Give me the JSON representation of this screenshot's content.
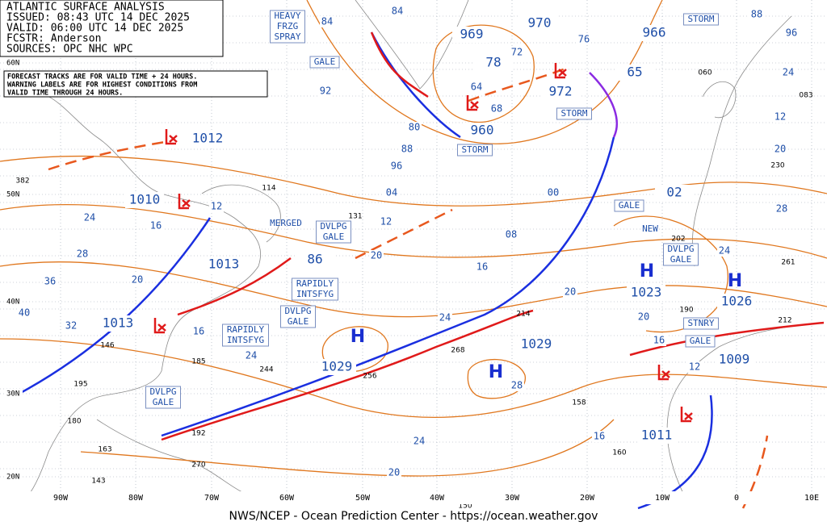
{
  "header": {
    "lines": [
      "ATLANTIC SURFACE ANALYSIS",
      "ISSUED: 08:43 UTC 14 DEC 2025",
      "VALID: 06:00 UTC 14 DEC 2025",
      "FCSTR: Anderson",
      "SOURCES: OPC NHC WPC"
    ]
  },
  "note": {
    "lines": [
      "FORECAST TRACKS ARE FOR VALID TIME + 24 HOURS.",
      "WARNING LABELS ARE FOR HIGHEST CONDITIONS FROM",
      "VALID TIME THROUGH 24 HOURS."
    ]
  },
  "warnings": [
    {
      "lines": [
        "HEAVY",
        "FRZG",
        "SPRAY"
      ]
    },
    {
      "lines": [
        "GALE"
      ]
    },
    {
      "lines": [
        "STORM"
      ]
    },
    {
      "lines": [
        "STORM"
      ]
    },
    {
      "lines": [
        "STORM"
      ]
    },
    {
      "lines": [
        "GALE"
      ]
    },
    {
      "lines": [
        "MERGED"
      ]
    },
    {
      "lines": [
        "DVLPG",
        "GALE"
      ]
    },
    {
      "lines": [
        "NEW"
      ]
    },
    {
      "lines": [
        "DVLPG",
        "GALE"
      ]
    },
    {
      "lines": [
        "RAPIDLY",
        "INTSFYG"
      ]
    },
    {
      "lines": [
        "DVLPG",
        "GALE"
      ]
    },
    {
      "lines": [
        "RAPIDLY",
        "INTSFYG"
      ]
    },
    {
      "lines": [
        "STNRY"
      ]
    },
    {
      "lines": [
        "GALE"
      ]
    },
    {
      "lines": [
        "DVLPG",
        "GALE"
      ]
    }
  ],
  "centers": [
    "969",
    "970",
    "966",
    "78",
    "972",
    "65",
    "960",
    "1012",
    "1010",
    "02",
    "1013",
    "86",
    "1023",
    "1026",
    "1013",
    "1029",
    "1029",
    "1009",
    "1011"
  ],
  "highs": [
    "H",
    "H",
    "H",
    "H"
  ],
  "isobar_labels": [
    "84",
    "84",
    "88",
    "96",
    "72",
    "76",
    "64",
    "68",
    "92",
    "80",
    "88",
    "96",
    "04",
    "00",
    "08",
    "12",
    "20",
    "16",
    "20",
    "24",
    "24",
    "20",
    "16",
    "12",
    "28",
    "20",
    "12",
    "24",
    "24",
    "16",
    "28",
    "36",
    "20",
    "40",
    "32",
    "16",
    "24",
    "12",
    "28",
    "24",
    "20",
    "16"
  ],
  "lat_labels": [
    "60N",
    "50N",
    "40N",
    "30N",
    "20N"
  ],
  "lon_labels": [
    "90W",
    "80W",
    "70W",
    "60W",
    "50W",
    "40W",
    "30W",
    "20W",
    "10W",
    "0",
    "10E"
  ],
  "stations": [
    "060",
    "083",
    "230",
    "202",
    "261",
    "214",
    "268",
    "256",
    "244",
    "185",
    "195",
    "146",
    "180",
    "163",
    "143",
    "192",
    "270",
    "150",
    "158",
    "160",
    "212",
    "190",
    "114",
    "131",
    "382"
  ],
  "footer": "NWS/NCEP - Ocean Prediction Center - https://ocean.weather.gov"
}
